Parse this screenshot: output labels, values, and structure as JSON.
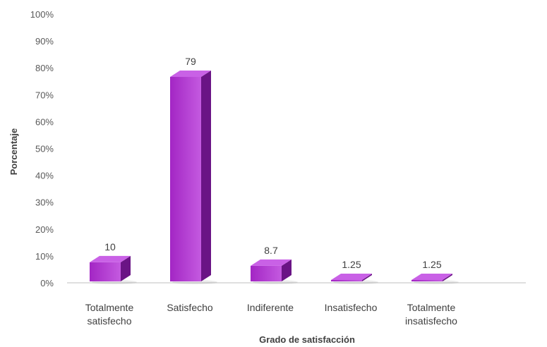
{
  "chart_data": {
    "type": "bar",
    "categories": [
      [
        "Totalmente",
        "satisfecho"
      ],
      [
        "Satisfecho"
      ],
      [
        "Indiferente"
      ],
      [
        "Insatisfecho"
      ],
      [
        "Totalmente",
        "insatisfecho"
      ]
    ],
    "values": [
      10,
      79,
      8.7,
      1.25,
      1.25
    ],
    "data_labels": [
      "10",
      "79",
      "8.7",
      "1.25",
      "1.25"
    ],
    "xlabel": "Grado de satisfacción",
    "ylabel": "Porcentaje",
    "ylim": [
      0,
      100
    ],
    "yticks": [
      "0%",
      "10%",
      "20%",
      "30%",
      "40%",
      "50%",
      "60%",
      "70%",
      "80%",
      "90%",
      "100%"
    ],
    "grid": false,
    "legend": "none",
    "colors": {
      "bar_front": "#a326c4",
      "bar_front_light": "#c45ae0",
      "bar_side": "#6a1485",
      "bar_top": "#c961e6",
      "axis": "#bfbfbf"
    }
  }
}
